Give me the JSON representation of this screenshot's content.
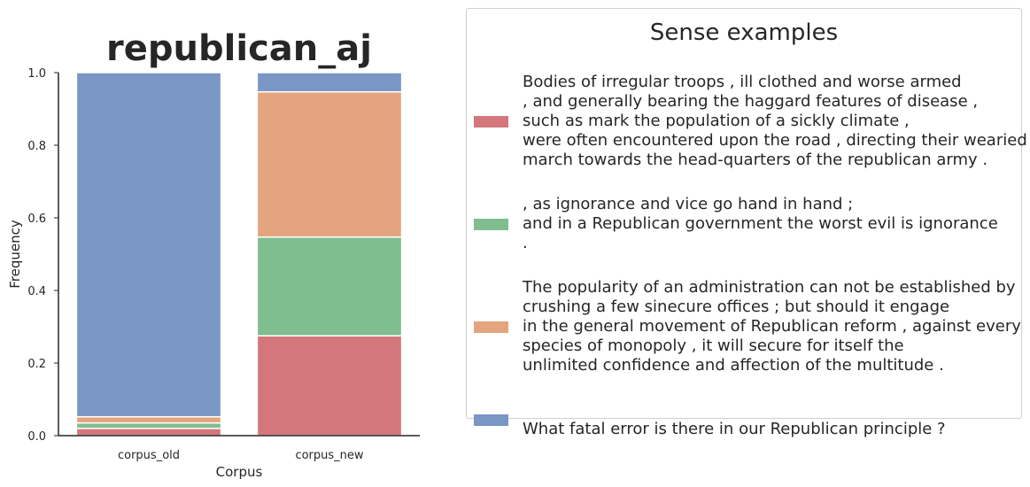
{
  "chart_data": {
    "type": "bar",
    "stacked": true,
    "title": "republican_aj",
    "xlabel": "Corpus",
    "ylabel": "Frequency",
    "ylim": [
      0,
      1
    ],
    "yticks": [
      "0.0",
      "0.2",
      "0.4",
      "0.6",
      "0.8",
      "1.0"
    ],
    "categories": [
      "corpus_old",
      "corpus_new"
    ],
    "series": [
      {
        "color": "#d3777c",
        "values": [
          0.02,
          0.275
        ]
      },
      {
        "color": "#80bd8f",
        "values": [
          0.015,
          0.272
        ]
      },
      {
        "color": "#e4a47e",
        "values": [
          0.017,
          0.4
        ]
      },
      {
        "color": "#7996c4",
        "values": [
          0.948,
          0.053
        ]
      }
    ],
    "grid": false
  },
  "legend": {
    "title": "Sense examples",
    "entries": [
      {
        "color": "#d3777c",
        "lines": [
          "Bodies of irregular troops , ill clothed and worse armed",
          ", and generally bearing the haggard features of disease ,",
          "such as mark the population of a sickly climate ,",
          "were often encountered upon the road , directing their wearied",
          "march towards the head-quarters of the republican army ."
        ]
      },
      {
        "color": "#80bd8f",
        "lines": [
          ", as ignorance and vice go hand in hand ;",
          "and in a Republican government the worst evil is ignorance",
          "."
        ]
      },
      {
        "color": "#e4a47e",
        "lines": [
          "The popularity of an administration can not be established by",
          "crushing a few sinecure offices ; but should it engage",
          "in the general movement of Republican reform , against every",
          "species of monopoly , it will secure for itself the",
          "unlimited confidence and affection of the multitude ."
        ]
      },
      {
        "color": "#7996c4",
        "lines": [
          "",
          "What fatal error is there in our Republican principle ?"
        ]
      }
    ]
  }
}
